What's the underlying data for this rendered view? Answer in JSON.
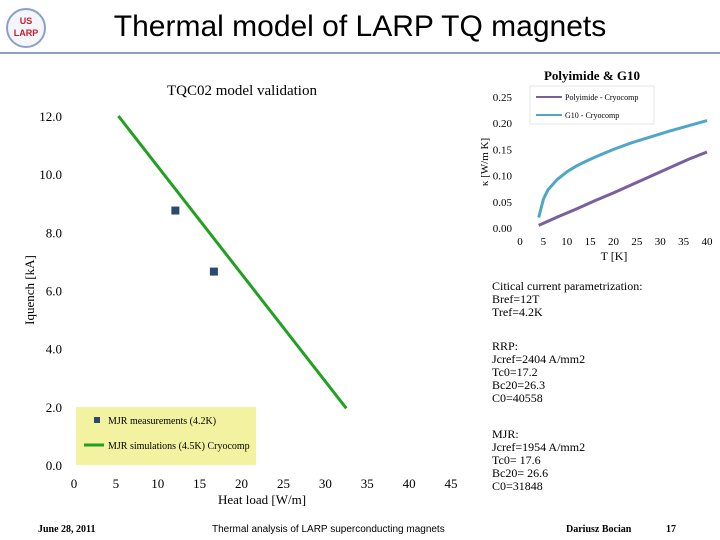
{
  "slide": {
    "title": "Thermal model of LARP TQ magnets",
    "logo_text": [
      "US",
      "LARP"
    ]
  },
  "colors": {
    "data": "#2b4a6f",
    "sim": "#22a022",
    "legend_bg": "#f2f2a0",
    "polyimide": "#7a5f9e",
    "g10": "#4fa6c8"
  },
  "chart_data": [
    {
      "type": "scatter",
      "title": "TQC02 model validation",
      "xlabel": "Heat load [W/m]",
      "ylabel": "Iquench [kA]",
      "xlim": [
        0,
        45
      ],
      "ylim": [
        0,
        12
      ],
      "x_ticks": [
        "0",
        "5",
        "10",
        "15",
        "20",
        "25",
        "30",
        "35",
        "40",
        "45"
      ],
      "y_ticks": [
        "0.0",
        "2.0",
        "4.0",
        "6.0",
        "8.0",
        "10.0",
        "12.0"
      ],
      "series": [
        {
          "name": "MJR measurements (4.2K)",
          "kind": "points",
          "x": [
            12.1,
            16.7
          ],
          "y": [
            8.75,
            6.65
          ]
        },
        {
          "name": "MJR simulations (4.5K) Cryocomp",
          "kind": "line",
          "x": [
            5.3,
            32.5
          ],
          "y": [
            12.0,
            1.95
          ]
        }
      ],
      "legend": "bottom-left"
    },
    {
      "type": "line",
      "title": "Polyimide & G10",
      "xlabel": "T [K]",
      "ylabel": "κ [W/m K]",
      "xlim": [
        0,
        40
      ],
      "ylim": [
        0,
        0.25
      ],
      "x_ticks": [
        "0",
        "5",
        "10",
        "15",
        "20",
        "25",
        "30",
        "35",
        "40"
      ],
      "y_ticks": [
        "0.00",
        "0.05",
        "0.10",
        "0.15",
        "0.20",
        "0.25"
      ],
      "series": [
        {
          "name": "Polyimide - Cryocomp",
          "x": [
            4,
            8,
            12,
            16,
            20,
            24,
            28,
            32,
            36,
            40
          ],
          "y": [
            0.005,
            0.021,
            0.036,
            0.052,
            0.067,
            0.083,
            0.099,
            0.115,
            0.131,
            0.145
          ]
        },
        {
          "name": "G10 - Cryocomp",
          "x": [
            4,
            5,
            6,
            8,
            10,
            12,
            14,
            16,
            20,
            24,
            28,
            32,
            36,
            40
          ],
          "y": [
            0.02,
            0.055,
            0.073,
            0.093,
            0.107,
            0.118,
            0.127,
            0.135,
            0.15,
            0.163,
            0.174,
            0.185,
            0.195,
            0.205
          ]
        }
      ],
      "legend": "top-right"
    }
  ],
  "notes": {
    "critical_current": [
      "Citical current parametrization:",
      "Bref=12T",
      "Tref=4.2K"
    ],
    "rrp": [
      "RRP:",
      "Jcref=2404 A/mm2",
      "Tc0=17.2",
      "Bc20=26.3",
      "C0=40558"
    ],
    "mjr": [
      "MJR:",
      "Jcref=1954 A/mm2",
      "Tc0= 17.6",
      "Bc20= 26.6",
      "C0=31848"
    ]
  },
  "footer": {
    "date": "June 28, 2011",
    "center": "Thermal analysis of LARP superconducting magnets",
    "author": "Dariusz Bocian",
    "page": "17"
  }
}
